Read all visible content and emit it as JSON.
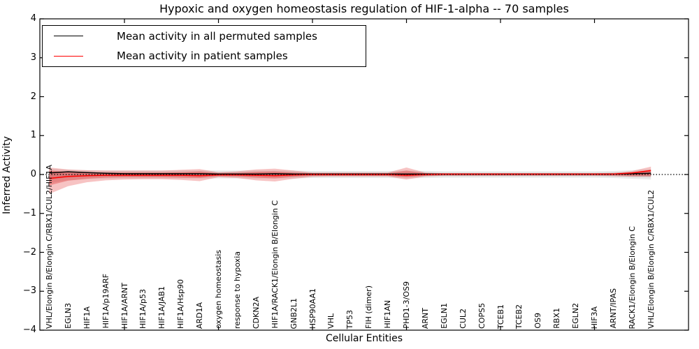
{
  "figure": {
    "title": "Hypoxic and oxygen homeostasis regulation of HIF-1-alpha -- 70 samples",
    "xlabel": "Cellular Entities",
    "ylabel": "Inferred Activity"
  },
  "legend": {
    "items": [
      {
        "label": "Mean activity in all permuted samples",
        "color": "#000000"
      },
      {
        "label": "Mean activity in patient samples",
        "color": "#ff0000"
      }
    ]
  },
  "colors": {
    "permuted_line": "#000000",
    "patient_line": "#ff0000",
    "patient_band_outer": "rgba(225,40,40,0.28)",
    "patient_band_inner": "rgba(225,40,40,0.34)",
    "permuted_band_outer": "rgba(120,120,120,0.16)",
    "permuted_band_inner": "rgba(120,120,120,0.20)",
    "zero_line": "#000000",
    "spine": "#000000"
  },
  "chart_data": {
    "type": "line",
    "title": "Hypoxic and oxygen homeostasis regulation of HIF-1-alpha -- 70 samples",
    "xlabel": "Cellular Entities",
    "ylabel": "Inferred Activity",
    "ylim": [
      -4,
      4
    ],
    "xlim": [
      0.5,
      35
    ],
    "grid": false,
    "legend_position": "upper left",
    "y_ticks": [
      4,
      3,
      2,
      1,
      0,
      -1,
      -2,
      -3,
      -4
    ],
    "x_tick_values": [
      5,
      10,
      15,
      20,
      25,
      30
    ],
    "zero_line": {
      "y": 0,
      "style": "dotted"
    },
    "categories": [
      "VHL/Elongin B/Elongin C/RBX1/CUL2/HIF1A",
      "EGLN3",
      "HIF1A",
      "HIF1A/p19ARF",
      "HIF1A/ARNT",
      "HIF1A/p53",
      "HIF1A/JAB1",
      "HIF1A/Hsp90",
      "ARD1A",
      "oxygen homeostasis",
      "response to hypoxia",
      "CDKN2A",
      "HIF1A/RACK1/Elongin B/Elongin C",
      "GNB2L1",
      "HSP90AA1",
      "VHL",
      "TP53",
      "FIH (dimer)",
      "HIF1AN",
      "PHD1-3/OS9",
      "ARNT",
      "EGLN1",
      "CUL2",
      "COPS5",
      "TCEB1",
      "TCEB2",
      "OS9",
      "RBX1",
      "EGLN2",
      "HIF3A",
      "ARNT/IPAS",
      "RACK1/Elongin B/Elongin C",
      "VHL/Elongin B/Elongin C/RBX1/CUL2"
    ],
    "series": [
      {
        "name": "Mean activity in all permuted samples",
        "color": "#000000",
        "values": [
          0.04,
          0.07,
          0.05,
          0.03,
          0.02,
          0.02,
          0.02,
          0.02,
          0.02,
          0.01,
          0.01,
          0.01,
          0.02,
          0.01,
          0.01,
          0.01,
          0.01,
          0.01,
          0.01,
          0.01,
          0.01,
          0.01,
          0.01,
          0.01,
          0.01,
          0.01,
          0.01,
          0.01,
          0.01,
          0.01,
          0.01,
          0.02,
          0.03
        ]
      },
      {
        "name": "Mean activity in patient samples",
        "color": "#ff0000",
        "values": [
          -0.1,
          -0.05,
          -0.03,
          -0.02,
          -0.02,
          -0.02,
          -0.02,
          -0.02,
          -0.03,
          -0.01,
          -0.01,
          -0.02,
          -0.03,
          -0.01,
          0.0,
          0.0,
          0.0,
          0.0,
          0.0,
          -0.02,
          0.0,
          0.01,
          0.01,
          0.01,
          0.01,
          0.01,
          0.01,
          0.01,
          0.01,
          0.01,
          0.01,
          0.04,
          0.1
        ]
      }
    ],
    "bands": [
      {
        "name": "permuted-outer",
        "color_key": "permuted_band_outer",
        "hi": [
          0.15,
          0.12,
          0.11,
          0.1,
          0.1,
          0.1,
          0.1,
          0.1,
          0.1,
          0.1,
          0.1,
          0.1,
          0.1,
          0.1,
          0.09,
          0.09,
          0.09,
          0.09,
          0.09,
          0.1,
          0.09,
          0.08,
          0.08,
          0.08,
          0.08,
          0.08,
          0.08,
          0.08,
          0.08,
          0.08,
          0.09,
          0.11,
          0.14
        ],
        "lo": [
          -0.22,
          -0.15,
          -0.12,
          -0.11,
          -0.1,
          -0.1,
          -0.1,
          -0.1,
          -0.1,
          -0.1,
          -0.1,
          -0.1,
          -0.1,
          -0.1,
          -0.09,
          -0.09,
          -0.09,
          -0.09,
          -0.09,
          -0.1,
          -0.09,
          -0.08,
          -0.08,
          -0.08,
          -0.08,
          -0.08,
          -0.08,
          -0.08,
          -0.08,
          -0.08,
          -0.09,
          -0.11,
          -0.13
        ]
      },
      {
        "name": "permuted-inner",
        "color_key": "permuted_band_inner",
        "hi": [
          0.08,
          0.06,
          0.05,
          0.05,
          0.05,
          0.05,
          0.05,
          0.05,
          0.05,
          0.05,
          0.05,
          0.05,
          0.05,
          0.05,
          0.04,
          0.04,
          0.04,
          0.04,
          0.04,
          0.05,
          0.04,
          0.04,
          0.04,
          0.04,
          0.04,
          0.04,
          0.04,
          0.04,
          0.04,
          0.04,
          0.05,
          0.06,
          0.08
        ],
        "lo": [
          -0.12,
          -0.08,
          -0.06,
          -0.05,
          -0.05,
          -0.05,
          -0.05,
          -0.05,
          -0.05,
          -0.05,
          -0.05,
          -0.05,
          -0.05,
          -0.05,
          -0.04,
          -0.04,
          -0.04,
          -0.04,
          -0.04,
          -0.05,
          -0.04,
          -0.04,
          -0.04,
          -0.04,
          -0.04,
          -0.04,
          -0.04,
          -0.04,
          -0.04,
          -0.04,
          -0.05,
          -0.06,
          -0.07
        ]
      },
      {
        "name": "patient-outer",
        "color_key": "patient_band_outer",
        "hi": [
          0.18,
          0.13,
          0.11,
          0.1,
          0.1,
          0.1,
          0.1,
          0.12,
          0.14,
          0.06,
          0.08,
          0.13,
          0.15,
          0.1,
          0.05,
          0.05,
          0.05,
          0.05,
          0.05,
          0.18,
          0.05,
          0.03,
          0.03,
          0.03,
          0.03,
          0.03,
          0.03,
          0.03,
          0.03,
          0.03,
          0.04,
          0.09,
          0.2
        ],
        "lo": [
          -0.5,
          -0.3,
          -0.2,
          -0.15,
          -0.13,
          -0.12,
          -0.12,
          -0.14,
          -0.17,
          -0.07,
          -0.09,
          -0.15,
          -0.18,
          -0.11,
          -0.06,
          -0.05,
          -0.05,
          -0.05,
          -0.05,
          -0.13,
          -0.05,
          -0.03,
          -0.03,
          -0.03,
          -0.03,
          -0.03,
          -0.03,
          -0.03,
          -0.03,
          -0.03,
          -0.04,
          -0.06,
          -0.06
        ]
      },
      {
        "name": "patient-inner",
        "color_key": "patient_band_inner",
        "hi": [
          0.1,
          0.07,
          0.06,
          0.05,
          0.05,
          0.05,
          0.05,
          0.06,
          0.08,
          0.03,
          0.04,
          0.07,
          0.08,
          0.05,
          0.03,
          0.03,
          0.03,
          0.03,
          0.03,
          0.1,
          0.03,
          0.02,
          0.02,
          0.02,
          0.02,
          0.02,
          0.02,
          0.02,
          0.02,
          0.02,
          0.02,
          0.05,
          0.12
        ],
        "lo": [
          -0.28,
          -0.16,
          -0.11,
          -0.08,
          -0.07,
          -0.07,
          -0.07,
          -0.08,
          -0.09,
          -0.04,
          -0.05,
          -0.08,
          -0.1,
          -0.06,
          -0.03,
          -0.03,
          -0.03,
          -0.03,
          -0.03,
          -0.07,
          -0.03,
          -0.02,
          -0.02,
          -0.02,
          -0.02,
          -0.02,
          -0.02,
          -0.02,
          -0.02,
          -0.02,
          -0.02,
          -0.03,
          -0.03
        ]
      }
    ]
  }
}
